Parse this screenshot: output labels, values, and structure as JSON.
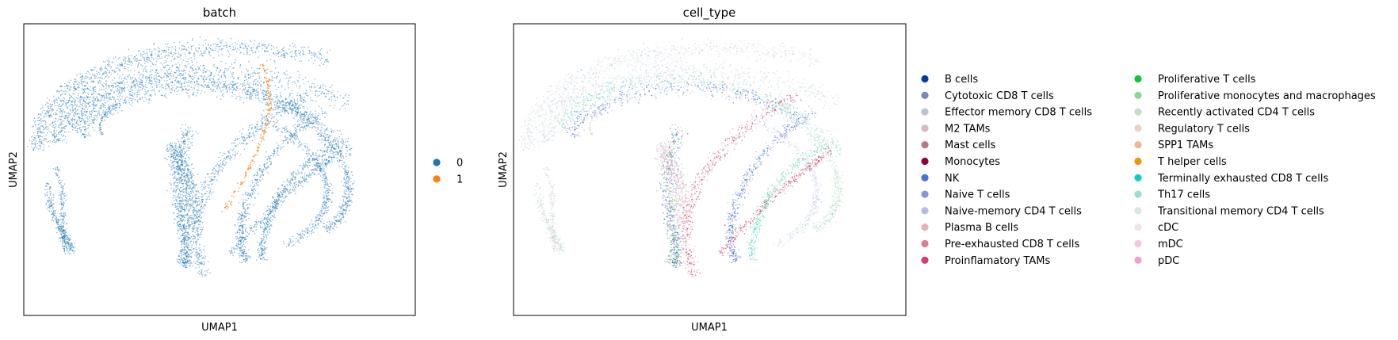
{
  "chart_data": [
    {
      "type": "scatter",
      "title": "batch",
      "xlabel": "UMAP1",
      "ylabel": "UMAP2",
      "xticks": [],
      "yticks": [],
      "grid": false,
      "legend_position": "right",
      "categories": [
        "0",
        "1"
      ],
      "colors": [
        "#1f77b4",
        "#ff7f0e"
      ]
    },
    {
      "type": "scatter",
      "title": "cell_type",
      "xlabel": "UMAP1",
      "ylabel": "UMAP2",
      "xticks": [],
      "yticks": [],
      "grid": false,
      "legend_position": "right",
      "categories": [
        "B cells",
        "Cytotoxic CD8 T cells",
        "Effector memory CD8 T cells",
        "M2 TAMs",
        "Mast cells",
        "Monocytes",
        "NK",
        "Naive T cells",
        "Naive-memory CD4 T cells",
        "Plasma B cells",
        "Pre-exhausted CD8 T cells",
        "Proinflamatory TAMs",
        "Proliferative T cells",
        "Proliferative monocytes and macrophages",
        "Recently activated CD4 T cells",
        "Regulatory T cells",
        "SPP1 TAMs",
        "T helper cells",
        "Terminally exhausted CD8 T cells",
        "Th17 cells",
        "Transitional memory CD4 T cells",
        "cDC",
        "mDC",
        "pDC"
      ],
      "colors": [
        "#023fa5",
        "#7d87b9",
        "#bec1d4",
        "#d6bcc0",
        "#bb7784",
        "#8e063b",
        "#4a6fe3",
        "#8595e1",
        "#b5bbe3",
        "#e6afb9",
        "#e07b91",
        "#d33f6a",
        "#11c638",
        "#8dd593",
        "#c6dec7",
        "#ead3c6",
        "#f0b98d",
        "#ef9708",
        "#0fcfc0",
        "#9cded6",
        "#d5eae7",
        "#f3e1eb",
        "#f6c4e1",
        "#f79cd4"
      ]
    }
  ]
}
